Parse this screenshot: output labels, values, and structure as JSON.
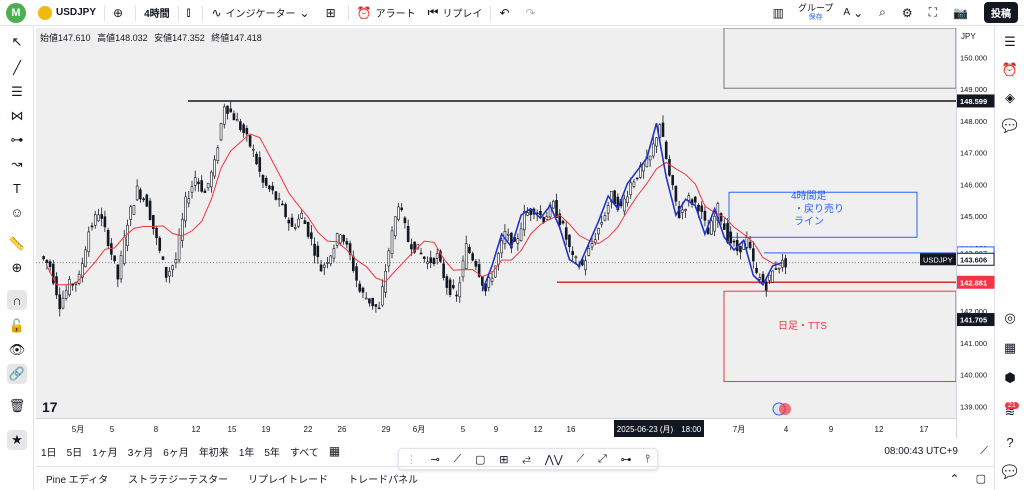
{
  "topbar": {
    "avatar_letter": "M",
    "symbol": "USDJPY",
    "interval": "4時間",
    "indicators": "インジケーター",
    "alert": "アラート",
    "replay": "リプレイ",
    "group_label": "グループ",
    "group_letter": "A",
    "group_sub": "保存",
    "post": "投稿"
  },
  "ohlc": {
    "open_label": "始値",
    "open": "147.610",
    "high_label": "高値",
    "high": "148.032",
    "low_label": "安値",
    "low": "147.352",
    "close_label": "終値",
    "close": "147.418"
  },
  "currency": "JPY",
  "price_axis": {
    "ticks": [
      "150.000",
      "149.000",
      "148.000",
      "147.000",
      "146.000",
      "145.000",
      "144.000",
      "143.000",
      "142.000",
      "141.000",
      "140.000",
      "139.000"
    ],
    "tick_values": [
      150,
      149,
      148,
      147,
      146,
      145,
      144,
      143,
      142,
      141,
      140,
      139
    ],
    "labels": [
      {
        "text": "148.599",
        "price": 148.599,
        "bg": "#131722",
        "fg": "#ffffff"
      },
      {
        "text": "143.807",
        "price": 143.807,
        "bg": "#ffffff",
        "fg": "#2962ff",
        "border": "#2962ff"
      },
      {
        "text": "USDJPY",
        "price": 143.606,
        "bg": "#131722",
        "fg": "#ffffff",
        "side": "left"
      },
      {
        "text": "143.606",
        "price": 143.606,
        "bg": "#ffffff",
        "fg": "#131722",
        "border": "#131722"
      },
      {
        "text": "142.881",
        "price": 142.881,
        "bg": "#f23645",
        "fg": "#ffffff"
      },
      {
        "text": "141.705",
        "price": 141.705,
        "bg": "#131722",
        "fg": "#ffffff"
      }
    ]
  },
  "time_axis": {
    "labels": [
      "5月",
      "5",
      "8",
      "12",
      "15",
      "19",
      "22",
      "26",
      "29",
      "6月",
      "5",
      "9",
      "12",
      "16",
      "7月",
      "4",
      "9",
      "12",
      "17"
    ],
    "crosshair": "2025-06-23 (月)　18:00"
  },
  "annotations": {
    "box_4h_text_1": "4時間足",
    "box_4h_text_2": "・戻り売り",
    "box_4h_text_3": "ライン",
    "box_daily_text": "日足・TTS"
  },
  "range_buttons": [
    "1日",
    "5日",
    "1ヶ月",
    "3ヶ月",
    "6ヶ月",
    "年初来",
    "1年",
    "5年",
    "すべて"
  ],
  "clock": "08:00:43 UTC+9",
  "bottom_tabs": [
    "Pine エディタ",
    "ストラテジーテスター",
    "リプレイトレード",
    "トレードパネル"
  ],
  "badge_count": "21",
  "colors": {
    "accent": "#2962ff",
    "down": "#f23645",
    "up": "#131722",
    "ma": "#f23645"
  },
  "chart_data": {
    "type": "candlestick",
    "ylim": [
      138.6,
      150.9
    ],
    "resistance_line": 148.599,
    "support_line": 142.881,
    "close_series": [
      143.4,
      142.2,
      142.8,
      143.0,
      144.5,
      145.1,
      144.2,
      143.0,
      144.8,
      145.8,
      145.4,
      144.2,
      143.1,
      143.6,
      145.4,
      146.2,
      145.7,
      146.6,
      148.5,
      148.1,
      147.6,
      147.0,
      146.0,
      145.7,
      145.2,
      144.6,
      145.0,
      144.2,
      143.3,
      143.8,
      144.5,
      143.7,
      142.6,
      142.3,
      142.0,
      143.9,
      145.4,
      144.2,
      143.9,
      143.5,
      143.7,
      142.8,
      142.4,
      144.0,
      143.5,
      142.6,
      143.4,
      144.4,
      144.0,
      145.0,
      145.2,
      144.9,
      145.3,
      144.6,
      143.6,
      143.4,
      144.1,
      144.8,
      145.6,
      145.2,
      146.0,
      146.4,
      146.8,
      147.9,
      146.2,
      145.0,
      145.5,
      145.3,
      144.4,
      145.2,
      144.3,
      143.9,
      144.2,
      143.1,
      142.8,
      143.4,
      143.5
    ]
  }
}
